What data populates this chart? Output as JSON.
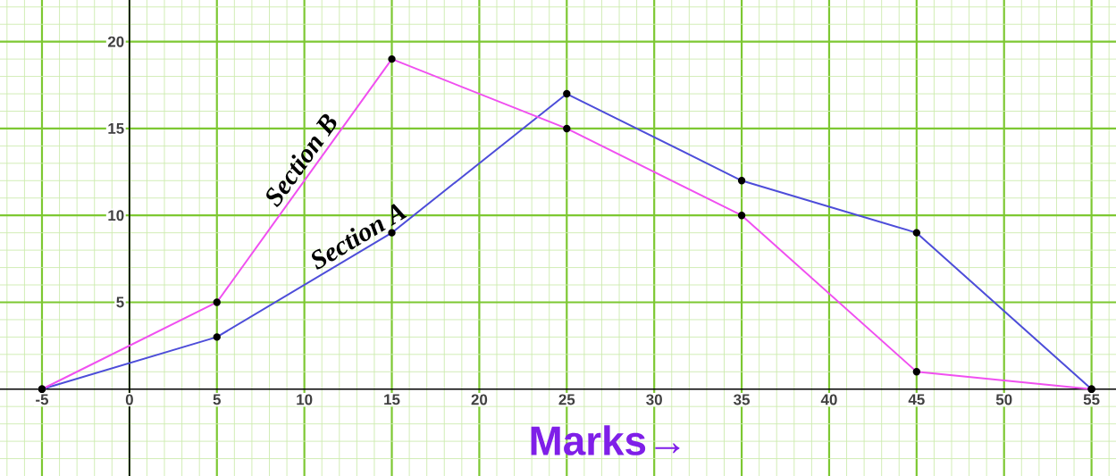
{
  "chart_data": {
    "type": "line",
    "xlabel": "Marks→",
    "x": [
      -5,
      5,
      15,
      25,
      35,
      45,
      55
    ],
    "series": [
      {
        "name": "Section A",
        "color": "#4d4dd9",
        "values": [
          0,
          3,
          9,
          17,
          12,
          9,
          0
        ]
      },
      {
        "name": "Section B",
        "color": "#f050f0",
        "values": [
          0,
          5,
          19,
          15,
          10,
          1,
          0
        ]
      }
    ],
    "xlim": [
      -7.4,
      56.4
    ],
    "ylim": [
      -5,
      22.4
    ],
    "xticks": [
      {
        "value": -7,
        "label": null
      },
      {
        "value": -6,
        "label": null
      },
      -5,
      {
        "value": -4,
        "label": null
      },
      {
        "value": -3,
        "label": null
      },
      {
        "value": -2,
        "label": null
      },
      {
        "value": -1,
        "label": null
      },
      0,
      {
        "value": 1,
        "label": null
      },
      {
        "value": 2,
        "label": null
      },
      {
        "value": 3,
        "label": null
      },
      {
        "value": 4,
        "label": null
      },
      5,
      {
        "value": 6,
        "label": null
      },
      {
        "value": 7,
        "label": null
      },
      {
        "value": 8,
        "label": null
      },
      {
        "value": 9,
        "label": null
      },
      10,
      {
        "value": 11,
        "label": null
      },
      {
        "value": 12,
        "label": null
      },
      {
        "value": 13,
        "label": null
      },
      {
        "value": 14,
        "label": null
      },
      15,
      {
        "value": 16,
        "label": null
      },
      {
        "value": 17,
        "label": null
      },
      {
        "value": 18,
        "label": null
      },
      {
        "value": 19,
        "label": null
      },
      20,
      {
        "value": 21,
        "label": null
      },
      {
        "value": 22,
        "label": null
      },
      {
        "value": 23,
        "label": null
      },
      {
        "value": 24,
        "label": null
      },
      25,
      {
        "value": 26,
        "label": null
      },
      {
        "value": 27,
        "label": null
      },
      {
        "value": 28,
        "label": null
      },
      {
        "value": 29,
        "label": null
      },
      30,
      {
        "value": 31,
        "label": null
      },
      {
        "value": 32,
        "label": null
      },
      {
        "value": 33,
        "label": null
      },
      {
        "value": 34,
        "label": null
      },
      35,
      {
        "value": 36,
        "label": null
      },
      {
        "value": 37,
        "label": null
      },
      {
        "value": 38,
        "label": null
      },
      {
        "value": 39,
        "label": null
      },
      40,
      {
        "value": 41,
        "label": null
      },
      {
        "value": 42,
        "label": null
      },
      {
        "value": 43,
        "label": null
      },
      {
        "value": 44,
        "label": null
      },
      45,
      {
        "value": 46,
        "label": null
      },
      {
        "value": 47,
        "label": null
      },
      {
        "value": 48,
        "label": null
      },
      {
        "value": 49,
        "label": null
      },
      50,
      {
        "value": 51,
        "label": null
      },
      {
        "value": 52,
        "label": null
      },
      {
        "value": 53,
        "label": null
      },
      {
        "value": 54,
        "label": null
      },
      55,
      {
        "value": 56,
        "label": null
      }
    ],
    "yticks": [
      {
        "value": -4,
        "label": null
      },
      {
        "value": -3,
        "label": null
      },
      {
        "value": -2,
        "label": null
      },
      {
        "value": -1,
        "label": null
      },
      {
        "value": 1,
        "label": null
      },
      {
        "value": 2,
        "label": null
      },
      {
        "value": 3,
        "label": null
      },
      {
        "value": 4,
        "label": null
      },
      5,
      {
        "value": 6,
        "label": null
      },
      {
        "value": 7,
        "label": null
      },
      {
        "value": 8,
        "label": null
      },
      {
        "value": 9,
        "label": null
      },
      10,
      {
        "value": 11,
        "label": null
      },
      {
        "value": 12,
        "label": null
      },
      {
        "value": 13,
        "label": null
      },
      {
        "value": 14,
        "label": null
      },
      15,
      {
        "value": 16,
        "label": null
      },
      {
        "value": 17,
        "label": null
      },
      {
        "value": 18,
        "label": null
      },
      {
        "value": 19,
        "label": null
      },
      20,
      {
        "value": 21,
        "label": null
      },
      {
        "value": 22,
        "label": null
      }
    ],
    "grid": true,
    "marker": "circle",
    "line_style": "solid"
  }
}
